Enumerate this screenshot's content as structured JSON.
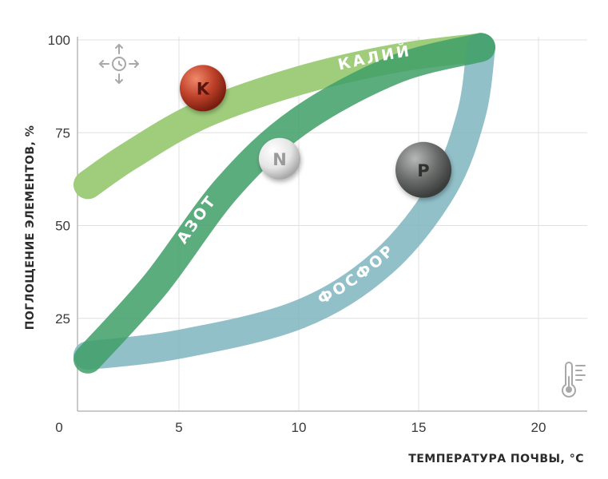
{
  "chart_data": {
    "type": "area",
    "xlabel": "ТЕМПЕРАТУРА ПОЧВЫ, °C",
    "ylabel": "ПОГЛОЩЕНИЕ ЭЛЕМЕНТОВ, %",
    "xlim": [
      -0.5,
      21.5
    ],
    "ylim": [
      0,
      100
    ],
    "xticks": [
      0,
      5,
      10,
      15,
      20
    ],
    "yticks": [
      25,
      50,
      75,
      100
    ],
    "grid": true,
    "series": [
      {
        "name": "КАЛИЙ",
        "element": "K",
        "color": "#9fcd7c",
        "ball_color": "#c0422b",
        "points": [
          [
            1.2,
            61
          ],
          [
            3,
            69
          ],
          [
            6,
            80
          ],
          [
            10,
            89
          ],
          [
            14,
            95
          ],
          [
            17.6,
            98
          ]
        ],
        "ball_at": [
          6,
          87
        ]
      },
      {
        "name": "АЗОТ",
        "element": "N",
        "color": "#3f9f67",
        "ball_color": "#e8e8e8",
        "points": [
          [
            1.2,
            14
          ],
          [
            4,
            34
          ],
          [
            7,
            60
          ],
          [
            10,
            78
          ],
          [
            14,
            92
          ],
          [
            17.6,
            98
          ]
        ],
        "ball_at": [
          9.2,
          68
        ]
      },
      {
        "name": "ФОСФОР",
        "element": "P",
        "color": "#7fb5bf",
        "ball_color": "#6b6e6c",
        "points": [
          [
            1.2,
            15
          ],
          [
            5,
            18
          ],
          [
            10,
            26
          ],
          [
            13.5,
            40
          ],
          [
            16,
            60
          ],
          [
            17.2,
            80
          ],
          [
            17.6,
            98
          ]
        ],
        "ball_at": [
          15.2,
          65
        ]
      }
    ]
  },
  "icons": {
    "corner_top_left": "move-arrows-icon",
    "corner_bottom_right": "thermometer-icon"
  }
}
